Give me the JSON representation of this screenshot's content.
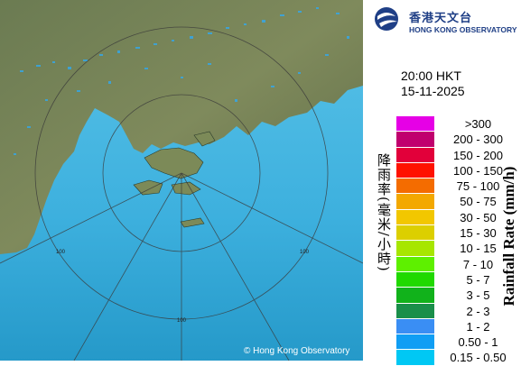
{
  "map": {
    "copyright": "© Hong Kong Observatory",
    "range_ring_label": "100"
  },
  "header": {
    "logo_zh": "香港天文台",
    "logo_en": "HONG KONG OBSERVATORY"
  },
  "timestamp": {
    "time": "20:00 HKT",
    "date": "15-11-2025"
  },
  "legend": {
    "title_zh": "降雨率(毫米/小時)",
    "title_en": "Rainfall Rate (mm/h)",
    "items": [
      {
        "label": ">300",
        "color": "#e600e6"
      },
      {
        "label": "200 - 300",
        "color": "#c0006e"
      },
      {
        "label": "150 - 200",
        "color": "#e2003a"
      },
      {
        "label": "100 - 150",
        "color": "#ff1200"
      },
      {
        "label": "75 - 100",
        "color": "#f46c00"
      },
      {
        "label": "50 - 75",
        "color": "#f3a800"
      },
      {
        "label": "30 - 50",
        "color": "#f2c700"
      },
      {
        "label": "15 - 30",
        "color": "#dccf00"
      },
      {
        "label": "10 - 15",
        "color": "#a7e600"
      },
      {
        "label": "7 - 10",
        "color": "#5ef000"
      },
      {
        "label": "5 - 7",
        "color": "#20d900"
      },
      {
        "label": "3 - 5",
        "color": "#11b21b"
      },
      {
        "label": "2 - 3",
        "color": "#1a8f4a"
      },
      {
        "label": "1 - 2",
        "color": "#3a8ef4"
      },
      {
        "label": "0.50 - 1",
        "color": "#109ef4"
      },
      {
        "label": "0.15 - 0.50",
        "color": "#00c8f4"
      }
    ]
  }
}
